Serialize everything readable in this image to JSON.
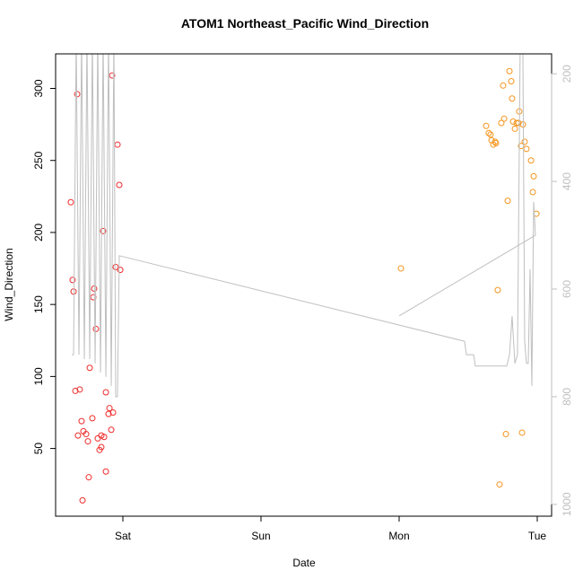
{
  "chart_data": {
    "type": "scatter",
    "title": "ATOM1 Northeast_Pacific Wind_Direction",
    "x_label": "Date",
    "y_label": "Wind_Direction",
    "xlim": [
      -0.487,
      3.104
    ],
    "xticks": [
      {
        "value": 0,
        "label": "Sat"
      },
      {
        "value": 1,
        "label": "Sun"
      },
      {
        "value": 2,
        "label": "Mon"
      },
      {
        "value": 3,
        "label": "Tue"
      }
    ],
    "ylim": [
      3,
      324
    ],
    "yticks": [
      50,
      100,
      150,
      200,
      250,
      300
    ],
    "y2lim": [
      1022,
      163
    ],
    "y2ticks": [
      200,
      400,
      600,
      800,
      1000
    ],
    "y2_tick_color": "#bfbfbf",
    "series": [
      {
        "type": "scatter",
        "color": "#ee2c2c",
        "x": [
          -0.377,
          -0.364,
          -0.357,
          -0.331,
          -0.344,
          -0.312,
          -0.325,
          -0.299,
          -0.286,
          -0.266,
          -0.292,
          -0.253,
          -0.247,
          -0.24,
          -0.221,
          -0.208,
          -0.214,
          -0.195,
          -0.182,
          -0.169,
          -0.156,
          -0.156,
          -0.136,
          -0.143,
          -0.123,
          -0.123,
          -0.104,
          -0.097,
          -0.084,
          -0.071,
          -0.078,
          -0.052,
          -0.039,
          -0.026,
          -0.019
        ],
        "values": [
          221,
          167,
          159,
          296,
          90,
          91,
          59,
          69,
          62,
          60,
          14,
          55,
          30,
          106,
          71,
          161,
          155,
          133,
          57,
          49,
          51,
          59,
          58,
          201,
          89,
          34,
          74,
          78,
          63,
          75,
          309,
          176,
          261,
          233,
          174
        ]
      },
      {
        "type": "scatter",
        "color": "#f5951e",
        "x": [
          2.013,
          2.63,
          2.649,
          2.662,
          2.669,
          2.682,
          2.695,
          2.701,
          2.74,
          2.753,
          2.76,
          2.786,
          2.799,
          2.812,
          2.818,
          2.825,
          2.838,
          2.851,
          2.864,
          2.87,
          2.883,
          2.896,
          2.909,
          2.922,
          2.955,
          2.974,
          2.968,
          2.994,
          2.714,
          2.773,
          2.89,
          2.727
        ],
        "values": [
          175,
          274,
          269,
          268,
          264,
          261,
          263,
          262,
          276,
          302,
          279,
          222,
          312,
          305,
          293,
          277,
          272,
          276,
          276,
          284,
          260,
          275,
          263,
          258,
          250,
          239,
          228,
          213,
          160,
          60,
          61,
          25
        ]
      },
      {
        "type": "line",
        "axis": "y2",
        "color": "#bfbfbf",
        "x": [
          -0.37,
          -0.357,
          -0.338,
          -0.318,
          -0.299,
          -0.279,
          -0.26,
          -0.24,
          -0.221,
          -0.201,
          -0.182,
          -0.162,
          -0.143,
          -0.123,
          -0.104,
          -0.084,
          -0.065,
          -0.052,
          -0.039,
          -0.026,
          2.474,
          2.487,
          2.539,
          2.552,
          2.779,
          2.799,
          2.818,
          2.838,
          2.857,
          2.877,
          2.896,
          2.909,
          2.922,
          2.935,
          2.948,
          2.961,
          2.974,
          2.987,
          2.0
        ],
        "values": [
          722,
          722,
          130,
          722,
          130,
          730,
          130,
          730,
          130,
          738,
          130,
          755,
          130,
          763,
          130,
          780,
          130,
          800,
          800,
          538,
          697,
          722,
          722,
          743,
          743,
          722,
          650,
          738,
          722,
          130,
          163,
          697,
          738,
          738,
          563,
          780,
          438,
          500,
          650
        ]
      }
    ]
  }
}
